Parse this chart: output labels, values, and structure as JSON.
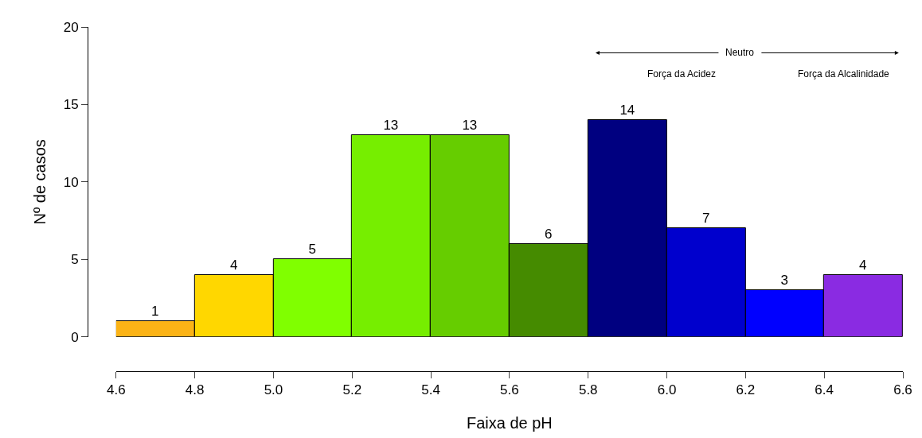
{
  "chart_data": {
    "type": "histogram",
    "xlabel": "Faixa de pH",
    "ylabel": "Nº de casos",
    "bins": [
      4.6,
      4.8,
      5.0,
      5.2,
      5.4,
      5.6,
      5.8,
      6.0,
      6.2,
      6.4,
      6.6
    ],
    "values": [
      1,
      4,
      5,
      13,
      13,
      6,
      14,
      7,
      3,
      4
    ],
    "colors": [
      "#fbb316",
      "#ffd700",
      "#80ff00",
      "#76ee00",
      "#66cd00",
      "#458b00",
      "#000080",
      "#0000cd",
      "#0000ff",
      "#8a2be2"
    ],
    "data_labels": true,
    "xlim": [
      4.6,
      6.6
    ],
    "xticks": [
      4.6,
      4.8,
      {
        "value": 5.0,
        "label": "5.0"
      },
      5.2,
      5.4,
      5.6,
      5.8,
      {
        "value": 6.0,
        "label": "6.0"
      },
      6.2,
      6.4,
      6.6
    ],
    "ylim": [
      0,
      20
    ],
    "yticks": [
      0,
      5,
      10,
      15,
      20
    ],
    "annotations": [
      "Neutro",
      "Força da Acidez",
      "Força da Alcalinidade"
    ]
  }
}
